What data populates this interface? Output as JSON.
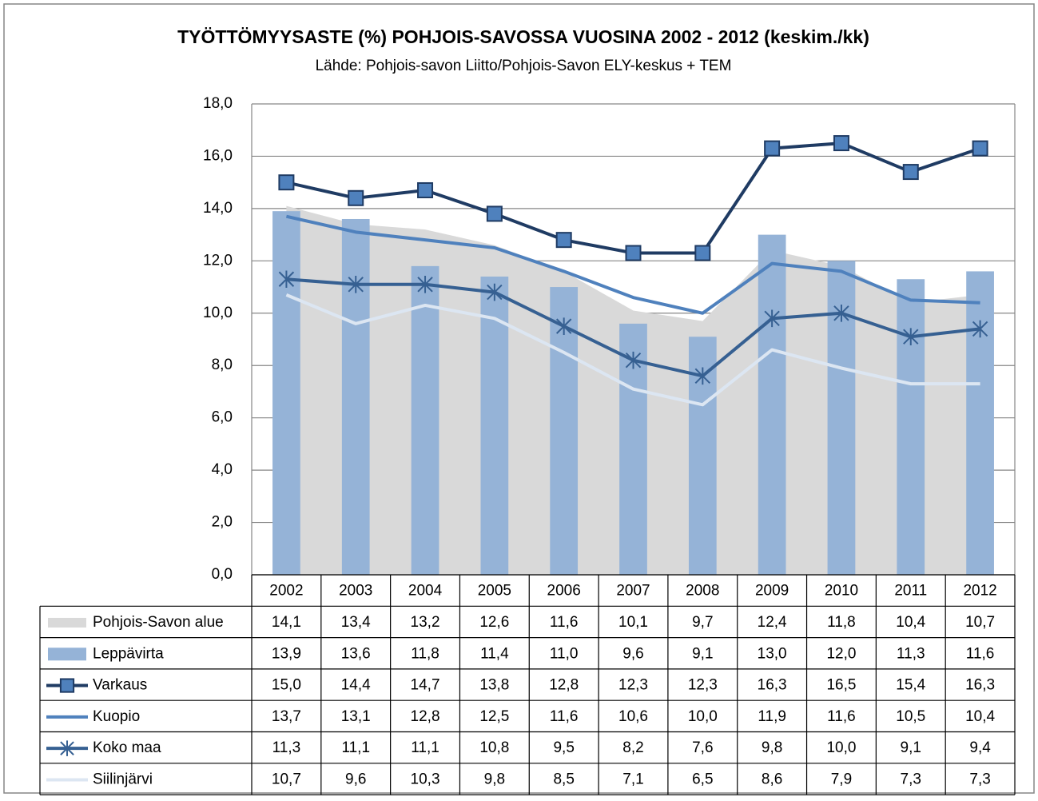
{
  "chart_data": {
    "type": "combo",
    "title": "TYÖTTÖMYYSASTE (%) POHJOIS-SAVOSSA VUOSINA 2002 - 2012 (keskim./kk)",
    "subtitle": "Lähde: Pohjois-savon Liitto/Pohjois-Savon ELY-keskus + TEM",
    "categories": [
      "2002",
      "2003",
      "2004",
      "2005",
      "2006",
      "2007",
      "2008",
      "2009",
      "2010",
      "2011",
      "2012"
    ],
    "ylim": [
      0,
      18
    ],
    "yticks": [
      {
        "value": 0,
        "label": "0,0"
      },
      {
        "value": 2,
        "label": "2,0"
      },
      {
        "value": 4,
        "label": "4,0"
      },
      {
        "value": 6,
        "label": "6,0"
      },
      {
        "value": 8,
        "label": "8,0"
      },
      {
        "value": 10,
        "label": "10,0"
      },
      {
        "value": 12,
        "label": "12,0"
      },
      {
        "value": 14,
        "label": "14,0"
      },
      {
        "value": 16,
        "label": "16,0"
      },
      {
        "value": 18,
        "label": "18,0"
      }
    ],
    "grid": true,
    "series": [
      {
        "name": "Pohjois-Savon alue",
        "type": "area",
        "color": "#d9d9d9",
        "values": [
          14.1,
          13.4,
          13.2,
          12.6,
          11.6,
          10.1,
          9.7,
          12.4,
          11.8,
          10.4,
          10.7
        ],
        "value_labels": [
          "14,1",
          "13,4",
          "13,2",
          "12,6",
          "11,6",
          "10,1",
          "9,7",
          "12,4",
          "11,8",
          "10,4",
          "10,7"
        ]
      },
      {
        "name": "Leppävirta",
        "type": "bar",
        "color": "#95b3d7",
        "values": [
          13.9,
          13.6,
          11.8,
          11.4,
          11.0,
          9.6,
          9.1,
          13.0,
          12.0,
          11.3,
          11.6
        ],
        "value_labels": [
          "13,9",
          "13,6",
          "11,8",
          "11,4",
          "11,0",
          "9,6",
          "9,1",
          "13,0",
          "12,0",
          "11,3",
          "11,6"
        ]
      },
      {
        "name": "Varkaus",
        "type": "line",
        "color": "#1f3b63",
        "marker": "square",
        "marker_color": "#4f81bd",
        "values": [
          15.0,
          14.4,
          14.7,
          13.8,
          12.8,
          12.3,
          12.3,
          16.3,
          16.5,
          15.4,
          16.3
        ],
        "value_labels": [
          "15,0",
          "14,4",
          "14,7",
          "13,8",
          "12,8",
          "12,3",
          "12,3",
          "16,3",
          "16,5",
          "15,4",
          "16,3"
        ]
      },
      {
        "name": "Kuopio",
        "type": "line",
        "color": "#4f81bd",
        "values": [
          13.7,
          13.1,
          12.8,
          12.5,
          11.6,
          10.6,
          10.0,
          11.9,
          11.6,
          10.5,
          10.4
        ],
        "value_labels": [
          "13,7",
          "13,1",
          "12,8",
          "12,5",
          "11,6",
          "10,6",
          "10,0",
          "11,9",
          "11,6",
          "10,5",
          "10,4"
        ]
      },
      {
        "name": "Koko maa",
        "type": "line",
        "color": "#366092",
        "marker": "star",
        "marker_color": "#4f81bd",
        "values": [
          11.3,
          11.1,
          11.1,
          10.8,
          9.5,
          8.2,
          7.6,
          9.8,
          10.0,
          9.1,
          9.4
        ],
        "value_labels": [
          "11,3",
          "11,1",
          "11,1",
          "10,8",
          "9,5",
          "8,2",
          "7,6",
          "9,8",
          "10,0",
          "9,1",
          "9,4"
        ]
      },
      {
        "name": "Siilinjärvi",
        "type": "line",
        "color": "#dce6f2",
        "values": [
          10.7,
          9.6,
          10.3,
          9.8,
          8.5,
          7.1,
          6.5,
          8.6,
          7.9,
          7.3,
          7.3
        ],
        "value_labels": [
          "10,7",
          "9,6",
          "10,3",
          "9,8",
          "8,5",
          "7,1",
          "6,5",
          "8,6",
          "7,9",
          "7,3",
          "7,3"
        ]
      }
    ]
  }
}
